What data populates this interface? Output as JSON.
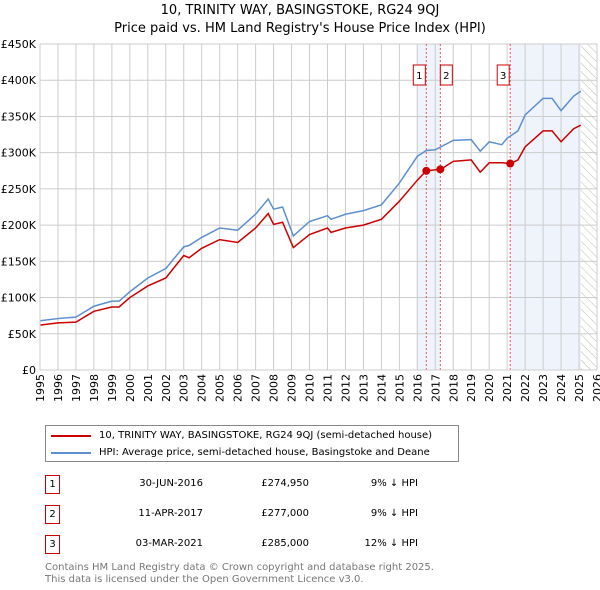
{
  "title": "10, TRINITY WAY, BASINGSTOKE, RG24 9QJ",
  "subtitle": "Price paid vs. HM Land Registry's House Price Index (HPI)",
  "legend": {
    "red": "10, TRINITY WAY, BASINGSTOKE, RG24 9QJ (semi-detached house)",
    "blue": "HPI: Average price, semi-detached house, Basingstoke and Deane"
  },
  "transactions": [
    {
      "num": "1",
      "date": "30-JUN-2016",
      "price": "£274,950",
      "hpi": "9% ↓ HPI"
    },
    {
      "num": "2",
      "date": "11-APR-2017",
      "price": "£277,000",
      "hpi": "9% ↓ HPI"
    },
    {
      "num": "3",
      "date": "03-MAR-2021",
      "price": "£285,000",
      "hpi": "12% ↓ HPI"
    }
  ],
  "footer": {
    "line1": "Contains HM Land Registry data © Crown copyright and database right 2025.",
    "line2": "This data is licensed under the Open Government Licence v3.0."
  },
  "chart_data": {
    "type": "line",
    "xlim": [
      1995,
      2026
    ],
    "ylim": [
      0,
      450000
    ],
    "yticks": [
      {
        "v": 0,
        "l": "£0"
      },
      {
        "v": 50000,
        "l": "£50K"
      },
      {
        "v": 100000,
        "l": "£100K"
      },
      {
        "v": 150000,
        "l": "£150K"
      },
      {
        "v": 200000,
        "l": "£200K"
      },
      {
        "v": 250000,
        "l": "£250K"
      },
      {
        "v": 300000,
        "l": "£300K"
      },
      {
        "v": 350000,
        "l": "£350K"
      },
      {
        "v": 400000,
        "l": "£400K"
      },
      {
        "v": 450000,
        "l": "£450K"
      }
    ],
    "xticks": [
      "1995",
      "1996",
      "1997",
      "1998",
      "1999",
      "2000",
      "2001",
      "2002",
      "2003",
      "2004",
      "2005",
      "2006",
      "2007",
      "2008",
      "2009",
      "2010",
      "2011",
      "2012",
      "2013",
      "2014",
      "2015",
      "2016",
      "2017",
      "2018",
      "2019",
      "2020",
      "2021",
      "2022",
      "2023",
      "2024",
      "2025",
      "2026"
    ],
    "shaded": [
      [
        2015.95,
        2017.3
      ],
      [
        2021.17,
        2025.1
      ]
    ],
    "forecast_start": 2025.1,
    "sales": [
      {
        "label": "1",
        "x": 2016.5,
        "y": 274950
      },
      {
        "label": "2",
        "x": 2017.28,
        "y": 277000
      },
      {
        "label": "3",
        "x": 2021.17,
        "y": 285000
      }
    ],
    "series": [
      {
        "name": "HPI",
        "color": "#5b8fd0",
        "x": [
          1995,
          1996,
          1997,
          1998,
          1999,
          1999.4,
          2000,
          2001,
          2002,
          2003,
          2003.3,
          2004,
          2005,
          2006,
          2007,
          2007.7,
          2008,
          2008.5,
          2009.1,
          2010,
          2011,
          2011.2,
          2012,
          2013,
          2014,
          2015,
          2016,
          2016.5,
          2017,
          2018,
          2019,
          2019.5,
          2020,
          2020.7,
          2021,
          2021.6,
          2022,
          2023,
          2023.5,
          2024,
          2024.7,
          2025.1
        ],
        "values": [
          68000,
          71000,
          73000,
          88000,
          95000,
          95000,
          108000,
          127000,
          140000,
          170000,
          172000,
          183000,
          196000,
          193000,
          215000,
          236000,
          222000,
          225000,
          185000,
          205000,
          213000,
          208000,
          215000,
          220000,
          228000,
          258000,
          295000,
          303000,
          304000,
          317000,
          318000,
          302000,
          315000,
          311000,
          320000,
          330000,
          352000,
          375000,
          375000,
          358000,
          378000,
          385000
        ]
      },
      {
        "name": "Price paid",
        "color": "#cc0000",
        "x": [
          1995,
          1996,
          1997,
          1998,
          1999,
          1999.4,
          2000,
          2001,
          2002,
          2003,
          2003.3,
          2004,
          2005,
          2006,
          2007,
          2007.7,
          2008,
          2008.5,
          2009.1,
          2010,
          2011,
          2011.2,
          2012,
          2013,
          2014,
          2015,
          2016,
          2016.5,
          2017.3,
          2018,
          2019,
          2019.5,
          2020,
          2020.7,
          2021.2,
          2021.6,
          2022,
          2023,
          2023.5,
          2024,
          2024.7,
          2025.1
        ],
        "values": [
          62000,
          65000,
          66000,
          81000,
          87000,
          87000,
          100000,
          116000,
          127000,
          158000,
          155000,
          168000,
          180000,
          176000,
          196000,
          216000,
          201000,
          204000,
          169000,
          187000,
          196000,
          190000,
          196000,
          200000,
          208000,
          233000,
          262000,
          275000,
          277000,
          288000,
          290000,
          273000,
          286000,
          286000,
          285000,
          290000,
          308000,
          330000,
          330000,
          315000,
          333000,
          338000
        ]
      }
    ]
  }
}
